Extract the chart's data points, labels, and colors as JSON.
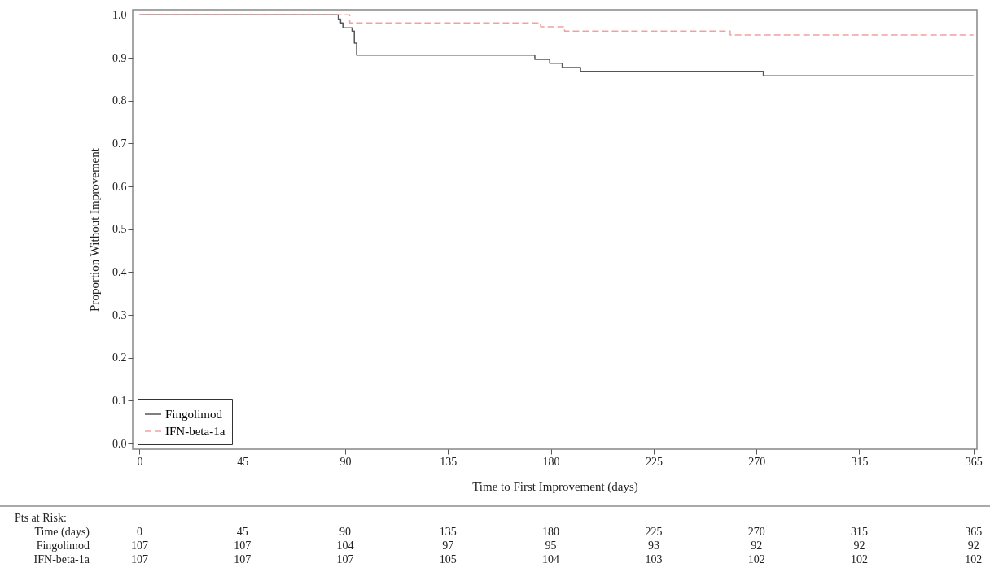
{
  "chart_data": {
    "type": "step",
    "xlabel": "Time to First Improvement (days)",
    "ylabel": "Proportion Without Improvement",
    "xlim": [
      -3,
      366.5
    ],
    "ylim": [
      -0.013,
      1.012
    ],
    "xticks": [
      0,
      45,
      90,
      135,
      180,
      225,
      270,
      315,
      365
    ],
    "yticks": [
      {
        "value": 0,
        "label": "0.0"
      },
      {
        "value": 0.1,
        "label": "0.1"
      },
      {
        "value": 0.2,
        "label": "0.2"
      },
      {
        "value": 0.3,
        "label": "0.3"
      },
      {
        "value": 0.4,
        "label": "0.4"
      },
      {
        "value": 0.5,
        "label": "0.5"
      },
      {
        "value": 0.6,
        "label": "0.6"
      },
      {
        "value": 0.7,
        "label": "0.7"
      },
      {
        "value": 0.8,
        "label": "0.8"
      },
      {
        "value": 0.9,
        "label": "0.9"
      },
      {
        "value": 1,
        "label": "1.0"
      }
    ],
    "series": [
      {
        "name": "Fingolimod",
        "color": "#555555",
        "line_style": "solid",
        "x": [
          0,
          87,
          88,
          89,
          93,
          94,
          95,
          173,
          179.5,
          185,
          193,
          273,
          365
        ],
        "values": [
          1.0,
          0.99,
          0.981,
          0.97,
          0.962,
          0.934,
          0.906,
          0.896,
          0.887,
          0.877,
          0.868,
          0.858,
          0.858
        ]
      },
      {
        "name": "IFN-beta-1a",
        "color": "#f4a0a0",
        "line_style": "dashed",
        "x": [
          0,
          92,
          175.5,
          186,
          258.5,
          365
        ],
        "values": [
          1.0,
          0.981,
          0.972,
          0.962,
          0.953,
          0.953
        ]
      }
    ],
    "legend": "bottom left",
    "grid": false,
    "annotations": [
      "Pts at Risk:",
      "Time (days)\t0\t45\t90\t135\t180\t225\t270\t315\t365",
      "Fingolimod\t107\t107\t104\t97\t95\t93\t92\t92\t92",
      "IFN-beta-1a\t107\t107\t107\t105\t104\t103\t102\t102\t102"
    ]
  }
}
